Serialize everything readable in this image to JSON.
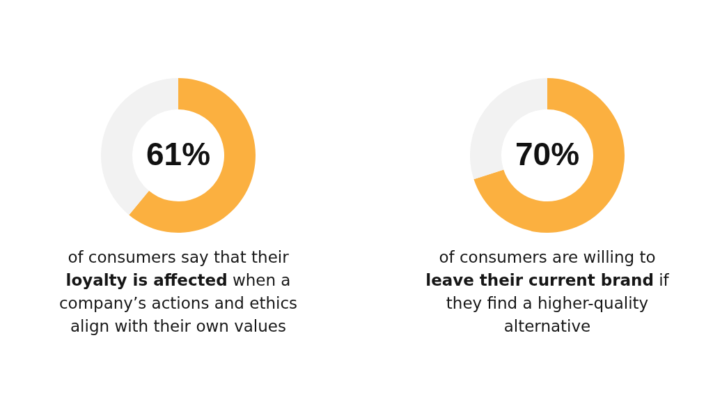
{
  "chart_data": [
    {
      "type": "donut",
      "categories": [
        null,
        null
      ],
      "values": [
        61,
        39
      ],
      "colors": [
        "#fbb040",
        "#f2f2f2"
      ],
      "value_labels": [
        "61%",
        null
      ],
      "annotations": [
        "of consumers say that their ",
        "loyalty is affected",
        " when a company’s actions and ethics align with their own values"
      ]
    },
    {
      "type": "donut",
      "categories": [
        null,
        null
      ],
      "values": [
        70,
        30
      ],
      "colors": [
        "#fbb040",
        "#f2f2f2"
      ],
      "value_labels": [
        "70%",
        null
      ],
      "annotations": [
        "of consumers are willing to ",
        "leave their current brand",
        " if they find a higher-quality alternative"
      ]
    }
  ]
}
